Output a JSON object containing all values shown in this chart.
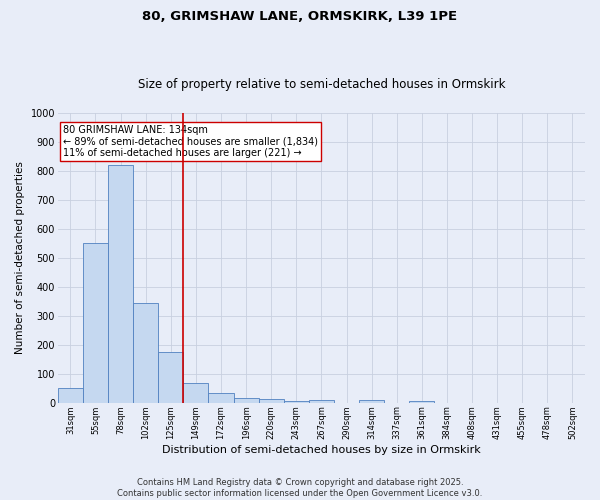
{
  "title": "80, GRIMSHAW LANE, ORMSKIRK, L39 1PE",
  "subtitle": "Size of property relative to semi-detached houses in Ormskirk",
  "xlabel": "Distribution of semi-detached houses by size in Ormskirk",
  "ylabel": "Number of semi-detached properties",
  "categories": [
    "31sqm",
    "55sqm",
    "78sqm",
    "102sqm",
    "125sqm",
    "149sqm",
    "172sqm",
    "196sqm",
    "220sqm",
    "243sqm",
    "267sqm",
    "290sqm",
    "314sqm",
    "337sqm",
    "361sqm",
    "384sqm",
    "408sqm",
    "431sqm",
    "455sqm",
    "478sqm",
    "502sqm"
  ],
  "values": [
    52,
    550,
    820,
    345,
    175,
    68,
    32,
    17,
    14,
    6,
    10,
    0,
    8,
    0,
    7,
    0,
    0,
    0,
    0,
    0,
    0
  ],
  "bar_color": "#c5d8f0",
  "bar_edge_color": "#5080c0",
  "vline_x": 4.5,
  "vline_color": "#cc0000",
  "annotation_text": "80 GRIMSHAW LANE: 134sqm\n← 89% of semi-detached houses are smaller (1,834)\n11% of semi-detached houses are larger (221) →",
  "annotation_box_color": "#ffffff",
  "annotation_box_edge": "#cc0000",
  "ylim": [
    0,
    1000
  ],
  "yticks": [
    0,
    100,
    200,
    300,
    400,
    500,
    600,
    700,
    800,
    900,
    1000
  ],
  "background_color": "#e8edf8",
  "grid_color": "#c8d0e0",
  "footer": "Contains HM Land Registry data © Crown copyright and database right 2025.\nContains public sector information licensed under the Open Government Licence v3.0.",
  "title_fontsize": 9.5,
  "subtitle_fontsize": 8.5,
  "annotation_fontsize": 7,
  "footer_fontsize": 6,
  "ylabel_fontsize": 7.5,
  "xlabel_fontsize": 8,
  "ytick_fontsize": 7,
  "xtick_fontsize": 6
}
